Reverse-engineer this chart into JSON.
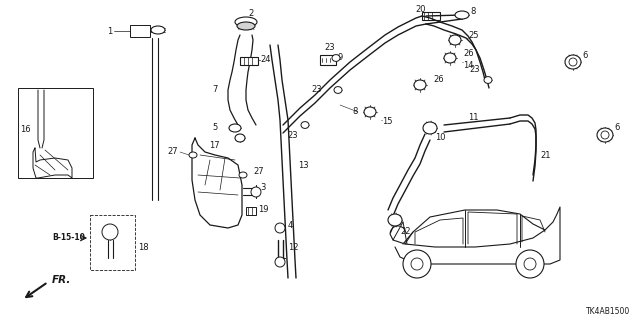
{
  "bg_color": "#ffffff",
  "diagram_code": "TK4AB1500",
  "line_color": "#1a1a1a",
  "lw": 0.8,
  "fs_label": 6.0,
  "fs_code": 5.5
}
